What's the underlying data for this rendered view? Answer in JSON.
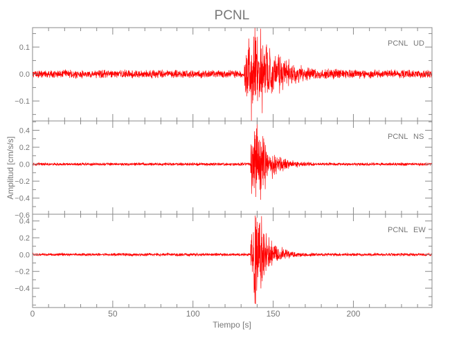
{
  "title": "PCNL",
  "chart_data": {
    "type": "line",
    "title": "PCNL",
    "xlabel": "Tiempo [s]",
    "ylabel": "Amplitud [cm/s/s]",
    "xlim": [
      0,
      249
    ],
    "xticks": [
      0,
      50,
      100,
      150,
      200
    ],
    "x_minor_step": 10,
    "grid": false,
    "line_color": "#ff0000",
    "axis_color": "#888888",
    "panels": [
      {
        "station": "PCNL",
        "component": "UD",
        "ylim": [
          -0.174,
          0.172
        ],
        "yticks": [
          0.1,
          0.0,
          -0.1
        ],
        "ytick_labels": [
          "0.1",
          "0.0",
          "-0.1"
        ],
        "y_minor_step": 0.05,
        "noise_amplitude": 0.01,
        "event_onset_s": 132,
        "peak_time_s": 139,
        "peak_amplitude": 0.17,
        "decay_s": 12
      },
      {
        "station": "PCNL",
        "component": "NS",
        "ylim": [
          -0.59,
          0.51
        ],
        "yticks": [
          0.4,
          0.2,
          0.0,
          -0.2,
          -0.4,
          -0.6
        ],
        "ytick_labels": [
          "0.4",
          "0.2",
          "0.0",
          "-0.2",
          "-0.4",
          "-0.6"
        ],
        "y_minor_step": 0.1,
        "noise_amplitude": 0.012,
        "event_onset_s": 136,
        "peak_time_s": 139,
        "peak_amplitude": 0.58,
        "decay_s": 7
      },
      {
        "station": "PCNL",
        "component": "EW",
        "ylim": [
          -0.63,
          0.48
        ],
        "yticks": [
          0.4,
          0.2,
          0.0,
          -0.2,
          -0.4
        ],
        "ytick_labels": [
          "0.4",
          "0.2",
          "0.0",
          "-0.2",
          "-0.4"
        ],
        "y_minor_step": 0.1,
        "noise_amplitude": 0.012,
        "event_onset_s": 136,
        "peak_time_s": 139,
        "peak_amplitude": 0.58,
        "decay_s": 7
      }
    ]
  }
}
